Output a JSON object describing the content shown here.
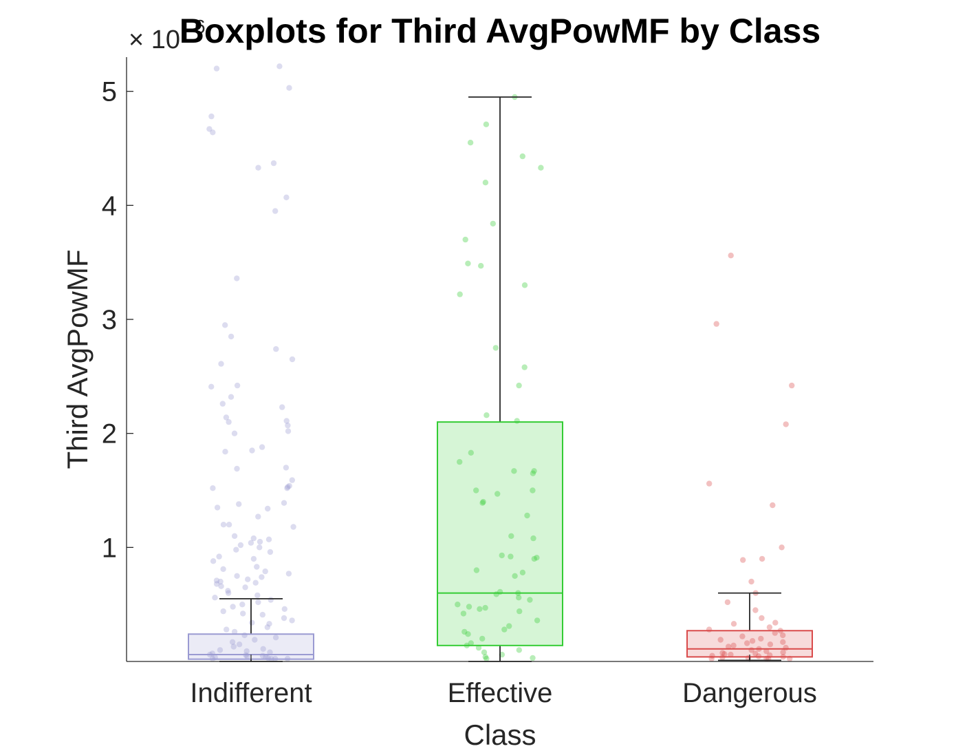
{
  "chart_data": {
    "type": "boxplot",
    "title": "Boxplots for Third AvgPowMF by Class",
    "xlabel": "Class",
    "ylabel": "Third AvgPowMF",
    "y_exponent_label": "× 10",
    "y_exponent_power": "6",
    "y_scale_factor": 1000000,
    "ylim": [
      0,
      5300000
    ],
    "yticks": [
      1000000,
      2000000,
      3000000,
      4000000,
      5000000
    ],
    "ytick_labels": [
      "1",
      "2",
      "3",
      "4",
      "5"
    ],
    "grid": false,
    "categories": [
      "Indifferent",
      "Effective",
      "Dangerous"
    ],
    "series": [
      {
        "name": "Indifferent",
        "color": "#9a9ad2",
        "whisker_low": 0,
        "q1": 20000,
        "median": 60000,
        "q3": 240000,
        "whisker_high": 550000,
        "points": [
          5200000,
          5220000,
          5030000,
          4780000,
          4670000,
          4640000,
          4370000,
          4330000,
          4070000,
          3950000,
          3360000,
          2950000,
          2850000,
          2740000,
          2650000,
          2610000,
          2420000,
          2410000,
          2320000,
          2260000,
          2230000,
          2140000,
          2110000,
          2100000,
          2070000,
          2020000,
          2000000,
          1880000,
          1850000,
          1840000,
          1700000,
          1690000,
          1590000,
          1540000,
          1530000,
          1520000,
          1520000,
          1390000,
          1380000,
          1350000,
          1340000,
          1270000,
          1200000,
          1200000,
          1180000,
          1100000,
          1080000,
          1070000,
          1050000,
          1040000,
          1020000,
          1000000,
          980000,
          960000,
          920000,
          900000,
          880000,
          830000,
          810000,
          790000,
          770000,
          750000,
          740000,
          720000,
          710000,
          700000,
          690000,
          680000,
          660000,
          650000,
          620000,
          600000,
          580000,
          560000,
          540000,
          520000,
          500000,
          480000,
          460000,
          440000,
          420000,
          410000,
          380000,
          360000,
          340000,
          330000,
          300000,
          280000,
          260000,
          230000,
          210000,
          190000,
          170000,
          150000,
          130000,
          110000,
          100000,
          90000,
          80000,
          70000,
          60000,
          55000,
          50000,
          45000,
          40000,
          35000,
          30000,
          25000,
          20000,
          15000,
          10000
        ]
      },
      {
        "name": "Effective",
        "color": "#33cc33",
        "whisker_low": 0,
        "q1": 140000,
        "median": 600000,
        "q3": 2100000,
        "whisker_high": 4950000,
        "points": [
          4950000,
          4710000,
          4550000,
          4430000,
          4330000,
          4200000,
          3840000,
          3700000,
          3490000,
          3470000,
          3300000,
          3220000,
          2750000,
          2580000,
          2420000,
          2160000,
          2110000,
          1830000,
          1750000,
          1670000,
          1670000,
          1650000,
          1500000,
          1500000,
          1470000,
          1400000,
          1390000,
          1280000,
          1100000,
          1080000,
          930000,
          920000,
          910000,
          900000,
          800000,
          780000,
          750000,
          610000,
          600000,
          590000,
          560000,
          540000,
          500000,
          480000,
          470000,
          460000,
          440000,
          420000,
          360000,
          310000,
          280000,
          260000,
          240000,
          200000,
          160000,
          140000,
          120000,
          100000,
          80000,
          60000,
          40000,
          30000,
          20000
        ]
      },
      {
        "name": "Dangerous",
        "color": "#d94a4a",
        "whisker_low": 10000,
        "q1": 40000,
        "median": 110000,
        "q3": 270000,
        "whisker_high": 600000,
        "points": [
          3560000,
          2960000,
          2420000,
          2080000,
          1560000,
          1370000,
          1000000,
          900000,
          890000,
          700000,
          600000,
          520000,
          450000,
          380000,
          340000,
          330000,
          300000,
          280000,
          270000,
          250000,
          230000,
          220000,
          200000,
          190000,
          180000,
          170000,
          160000,
          150000,
          140000,
          130000,
          120000,
          110000,
          100000,
          90000,
          80000,
          75000,
          70000,
          65000,
          60000,
          55000,
          50000,
          45000,
          40000,
          35000,
          30000,
          25000,
          20000,
          15000,
          10000
        ]
      }
    ]
  }
}
